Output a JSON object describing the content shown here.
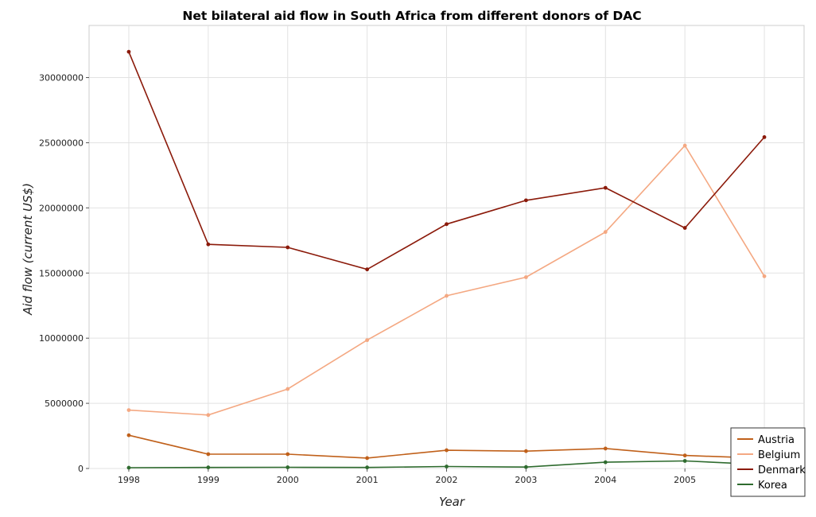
{
  "chart_data": {
    "type": "line",
    "title": "Net bilateral aid flow in South Africa from different donors of DAC",
    "xlabel": "Year",
    "ylabel": "Aid flow (current US$)",
    "categories": [
      "1998",
      "1999",
      "2000",
      "2001",
      "2002",
      "2003",
      "2004",
      "2005",
      "2006"
    ],
    "ylim": [
      0,
      34000000
    ],
    "yticks": [
      0,
      5000000,
      10000000,
      15000000,
      20000000,
      25000000,
      30000000
    ],
    "ytick_labels": [
      "0",
      "5000000",
      "10000000",
      "15000000",
      "20000000",
      "25000000",
      "30000000"
    ],
    "grid": true,
    "legend_position": "bottom-right",
    "series": [
      {
        "name": "Austria",
        "color": "#c0601a",
        "values": [
          2550000,
          1100000,
          1100000,
          800000,
          1400000,
          1330000,
          1530000,
          1000000,
          780000
        ]
      },
      {
        "name": "Belgium",
        "color": "#f4a882",
        "values": [
          4480000,
          4100000,
          6100000,
          9850000,
          13250000,
          14680000,
          18150000,
          24780000,
          14750000
        ]
      },
      {
        "name": "Denmark",
        "color": "#8b1a0a",
        "values": [
          31980000,
          17200000,
          16970000,
          15280000,
          18750000,
          20580000,
          21540000,
          18460000,
          25430000
        ]
      },
      {
        "name": "Korea",
        "color": "#2e6b2e",
        "values": [
          60000,
          80000,
          90000,
          80000,
          150000,
          110000,
          480000,
          580000,
          290000
        ]
      }
    ]
  }
}
